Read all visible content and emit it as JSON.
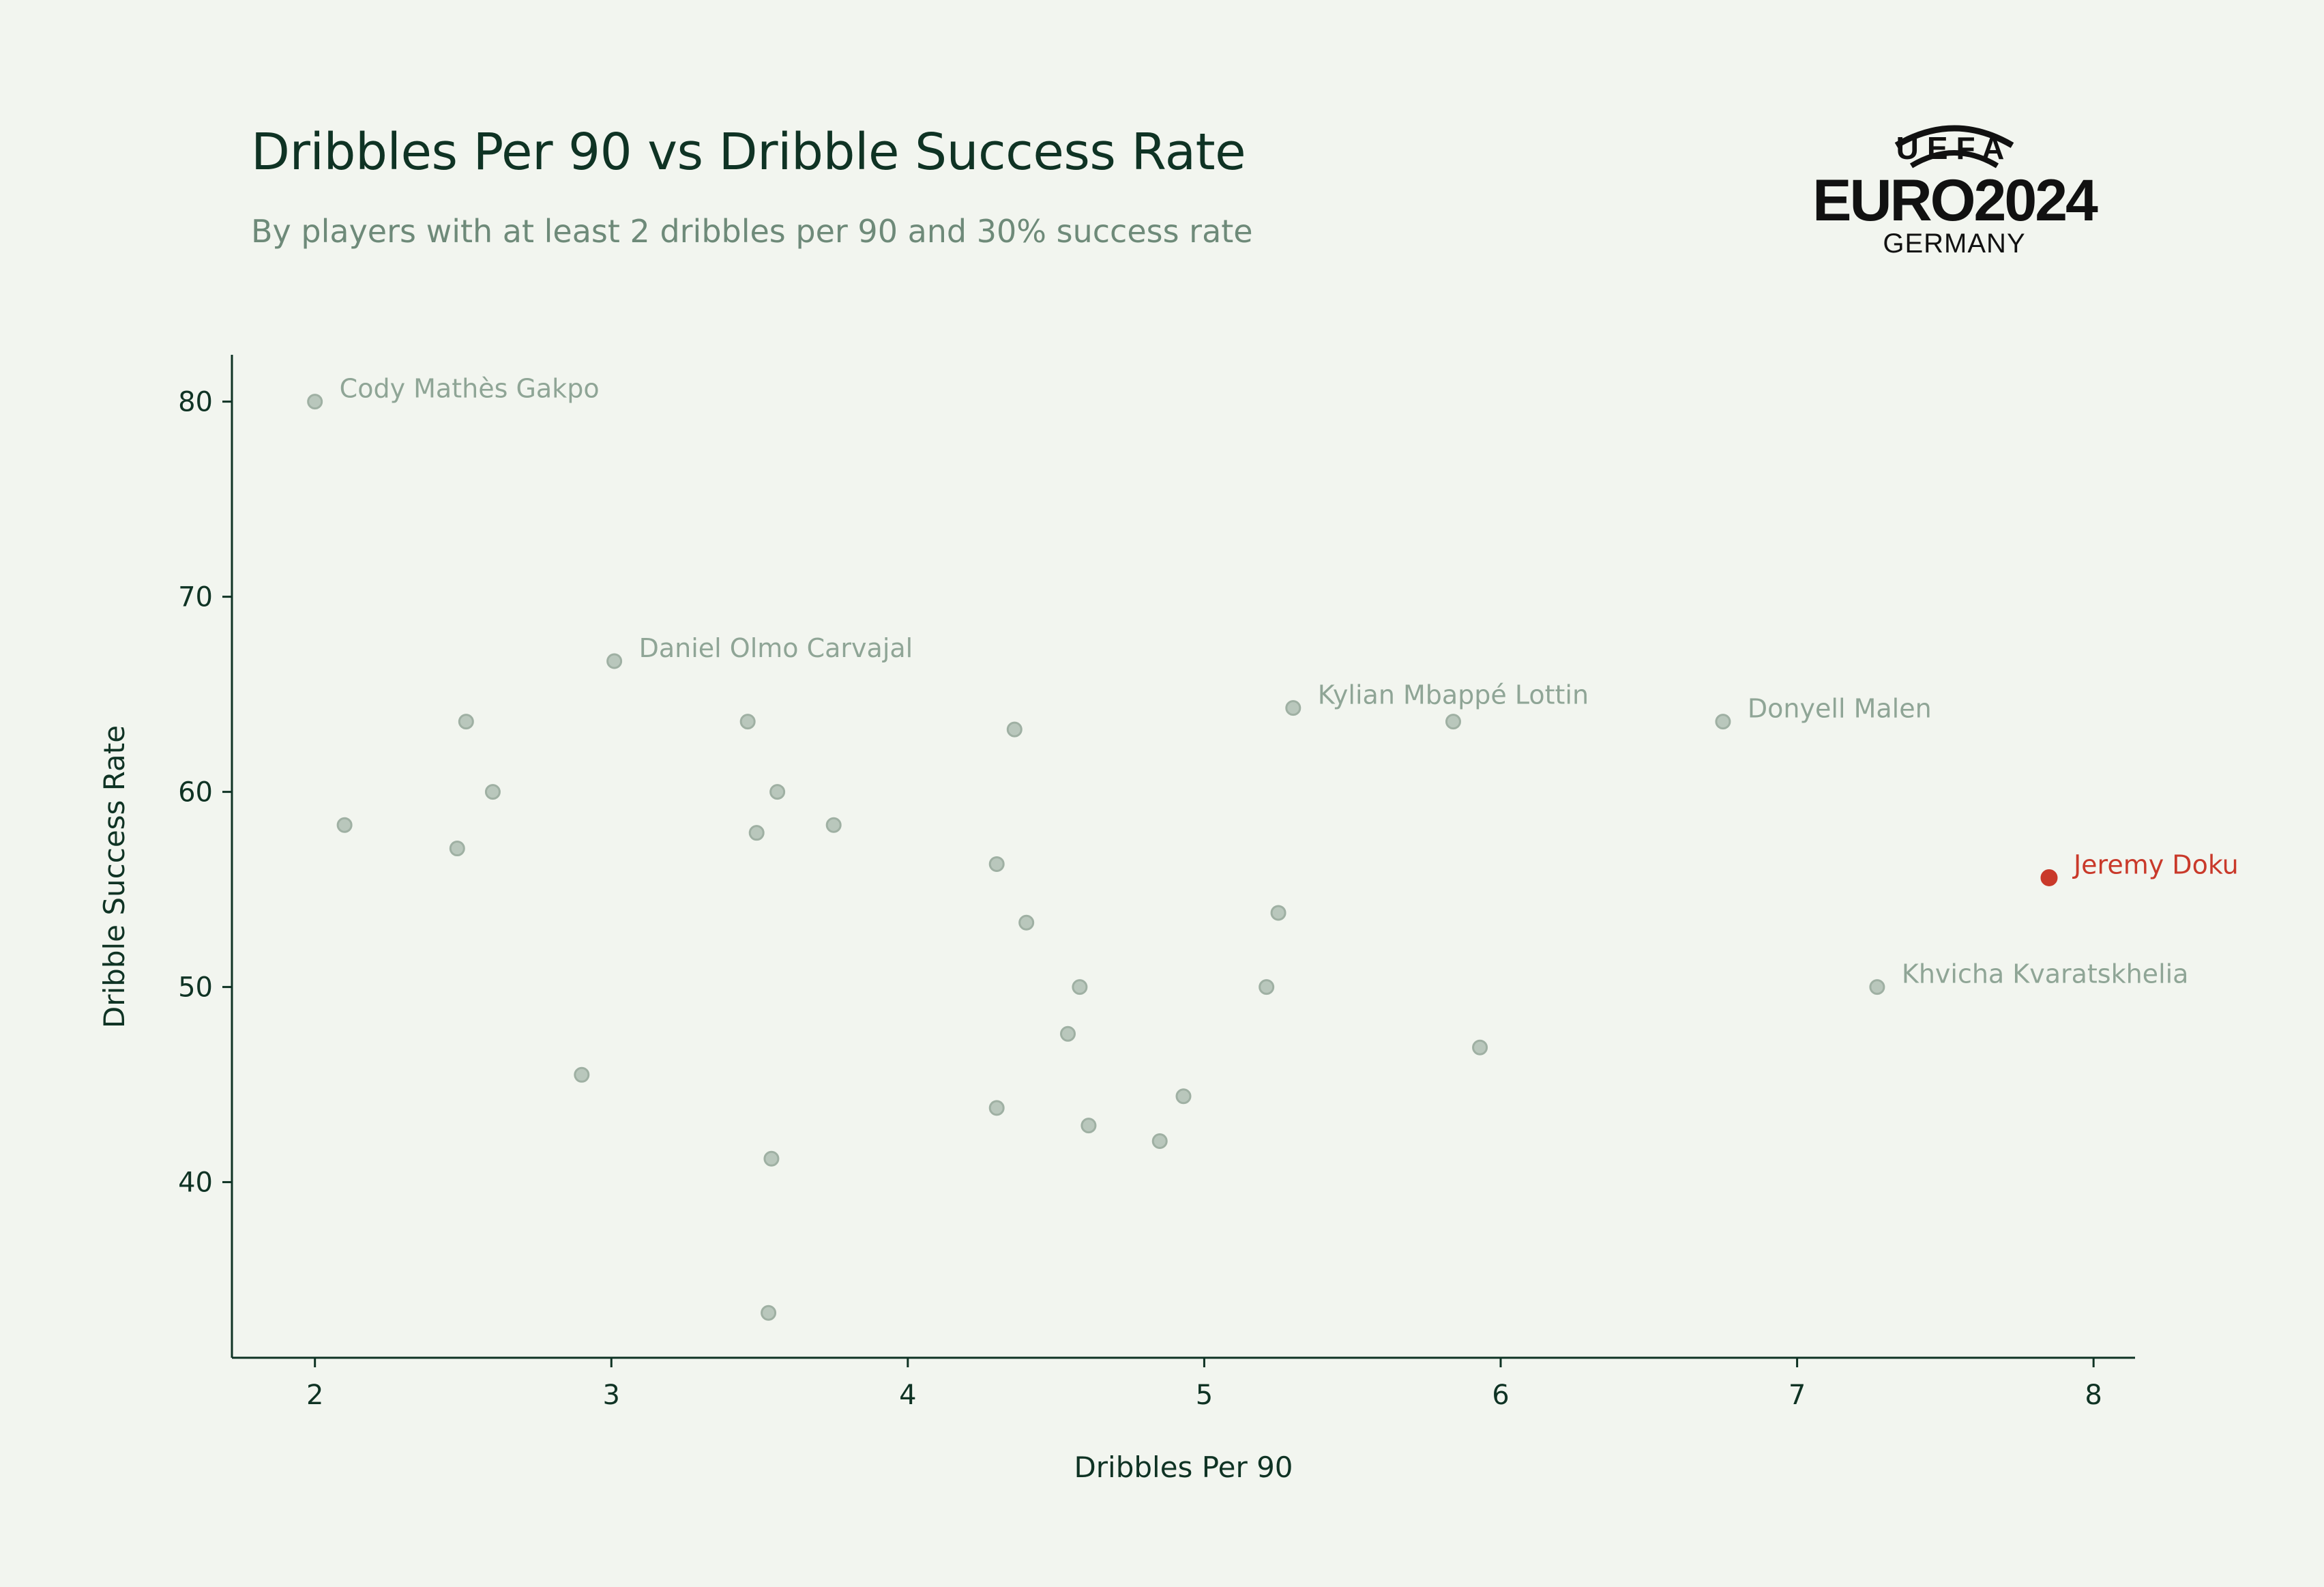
{
  "header": {
    "title": "Dribbles Per 90 vs Dribble Success Rate",
    "subtitle": "By players with at least 2 dribbles per 90 and 30% success rate"
  },
  "logo": {
    "top_text": "UEFA",
    "main_text": "EURO2024",
    "bottom_text": "GERMANY"
  },
  "colors": {
    "background": "#f2f5ef",
    "title": "#0f3324",
    "subtitle": "#6e8a79",
    "point": "#b9c7bc",
    "point_stroke": "#9fb0a3",
    "label": "#8fa596",
    "highlight": "#c9392a",
    "axis": "#0f3324"
  },
  "chart_data": {
    "type": "scatter",
    "xlabel": "Dribbles Per 90",
    "ylabel": "Dribble Success Rate",
    "xlim": [
      1.72,
      8.14
    ],
    "ylim": [
      31,
      82.4
    ],
    "xticks": [
      2,
      3,
      4,
      5,
      6,
      7,
      8
    ],
    "yticks": [
      40,
      50,
      60,
      70,
      80
    ],
    "grid": false,
    "points": [
      {
        "x": 2.0,
        "y": 80.0,
        "label": "Cody Mathès Gakpo"
      },
      {
        "x": 3.01,
        "y": 66.7,
        "label": "Daniel Olmo Carvajal"
      },
      {
        "x": 5.3,
        "y": 64.3,
        "label": "Kylian Mbappé Lottin"
      },
      {
        "x": 6.75,
        "y": 63.6,
        "label": "Donyell Malen"
      },
      {
        "x": 7.85,
        "y": 55.6,
        "label": "Jeremy Doku",
        "highlight": true
      },
      {
        "x": 7.27,
        "y": 50.0,
        "label": "Khvicha Kvaratskhelia"
      },
      {
        "x": 2.1,
        "y": 58.3
      },
      {
        "x": 2.48,
        "y": 57.1
      },
      {
        "x": 2.51,
        "y": 63.6
      },
      {
        "x": 2.6,
        "y": 60.0
      },
      {
        "x": 2.9,
        "y": 45.5
      },
      {
        "x": 3.46,
        "y": 63.6
      },
      {
        "x": 3.49,
        "y": 57.9
      },
      {
        "x": 3.53,
        "y": 33.3
      },
      {
        "x": 3.54,
        "y": 41.2
      },
      {
        "x": 3.56,
        "y": 60.0
      },
      {
        "x": 3.75,
        "y": 58.3
      },
      {
        "x": 4.3,
        "y": 56.3
      },
      {
        "x": 4.3,
        "y": 43.8
      },
      {
        "x": 4.36,
        "y": 63.2
      },
      {
        "x": 4.4,
        "y": 53.3
      },
      {
        "x": 4.54,
        "y": 47.6
      },
      {
        "x": 4.58,
        "y": 50.0
      },
      {
        "x": 4.61,
        "y": 42.9
      },
      {
        "x": 4.85,
        "y": 42.1
      },
      {
        "x": 4.93,
        "y": 44.4
      },
      {
        "x": 5.21,
        "y": 50.0
      },
      {
        "x": 5.25,
        "y": 53.8
      },
      {
        "x": 5.84,
        "y": 63.6
      },
      {
        "x": 5.93,
        "y": 46.9
      }
    ]
  }
}
